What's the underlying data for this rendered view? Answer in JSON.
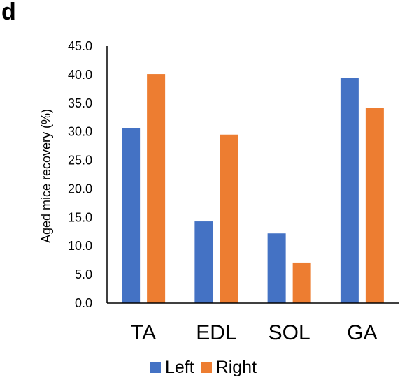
{
  "panel_label": "d",
  "chart_data": {
    "type": "bar",
    "title": "",
    "xlabel": "",
    "ylabel": "Aged mice recovery (%)",
    "ylim": [
      0,
      45
    ],
    "ytick_values": [
      0,
      5,
      10,
      15,
      20,
      25,
      30,
      35,
      40,
      45
    ],
    "ytick_labels": [
      "0.0",
      "5.0",
      "10.0",
      "15.0",
      "20.0",
      "25.0",
      "30.0",
      "35.0",
      "40.0",
      "45.0"
    ],
    "categories": [
      "TA",
      "EDL",
      "SOL",
      "GA"
    ],
    "series": [
      {
        "name": "Left",
        "color": "#4472C4",
        "values": [
          30.6,
          14.3,
          12.2,
          39.4
        ]
      },
      {
        "name": "Right",
        "color": "#ED7D31",
        "values": [
          40.1,
          29.5,
          7.1,
          34.2
        ]
      }
    ],
    "grid": false,
    "legend_position": "bottom"
  }
}
